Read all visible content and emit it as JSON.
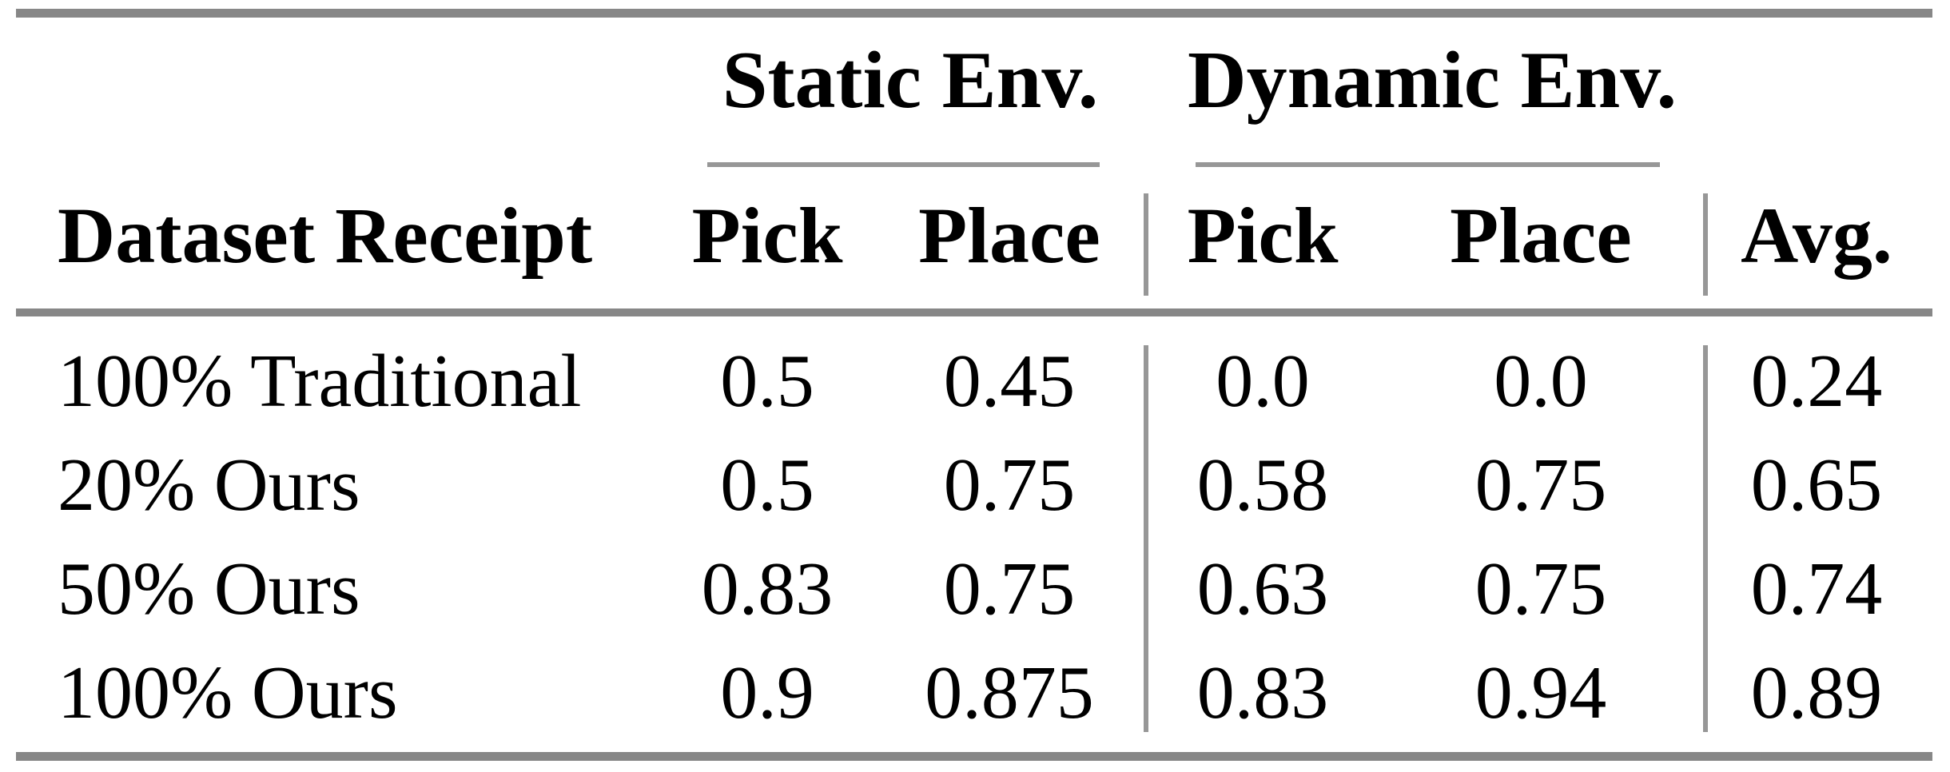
{
  "table": {
    "col_groups": {
      "static": "Static Env.",
      "dynamic": "Dynamic Env."
    },
    "headers": {
      "dataset": "Dataset Receipt",
      "static_pick": "Pick",
      "static_place": "Place",
      "dyn_pick": "Pick",
      "dyn_place": "Place",
      "avg": "Avg."
    },
    "rows": [
      {
        "label": "100% Traditional",
        "static_pick": "0.5",
        "static_place": "0.45",
        "dyn_pick": "0.0",
        "dyn_place": "0.0",
        "avg": "0.24"
      },
      {
        "label": "20% Ours",
        "static_pick": "0.5",
        "static_place": "0.75",
        "dyn_pick": "0.58",
        "dyn_place": "0.75",
        "avg": "0.65"
      },
      {
        "label": "50% Ours",
        "static_pick": "0.83",
        "static_place": "0.75",
        "dyn_pick": "0.63",
        "dyn_place": "0.75",
        "avg": "0.74"
      },
      {
        "label": "100% Ours",
        "static_pick": "0.9",
        "static_place": "0.875",
        "dyn_pick": "0.83",
        "dyn_place": "0.94",
        "avg": "0.89"
      }
    ]
  },
  "colors": {
    "rule-thick": "#878787",
    "rule-thin": "#979797",
    "text": "#000000",
    "background": "#ffffff"
  }
}
